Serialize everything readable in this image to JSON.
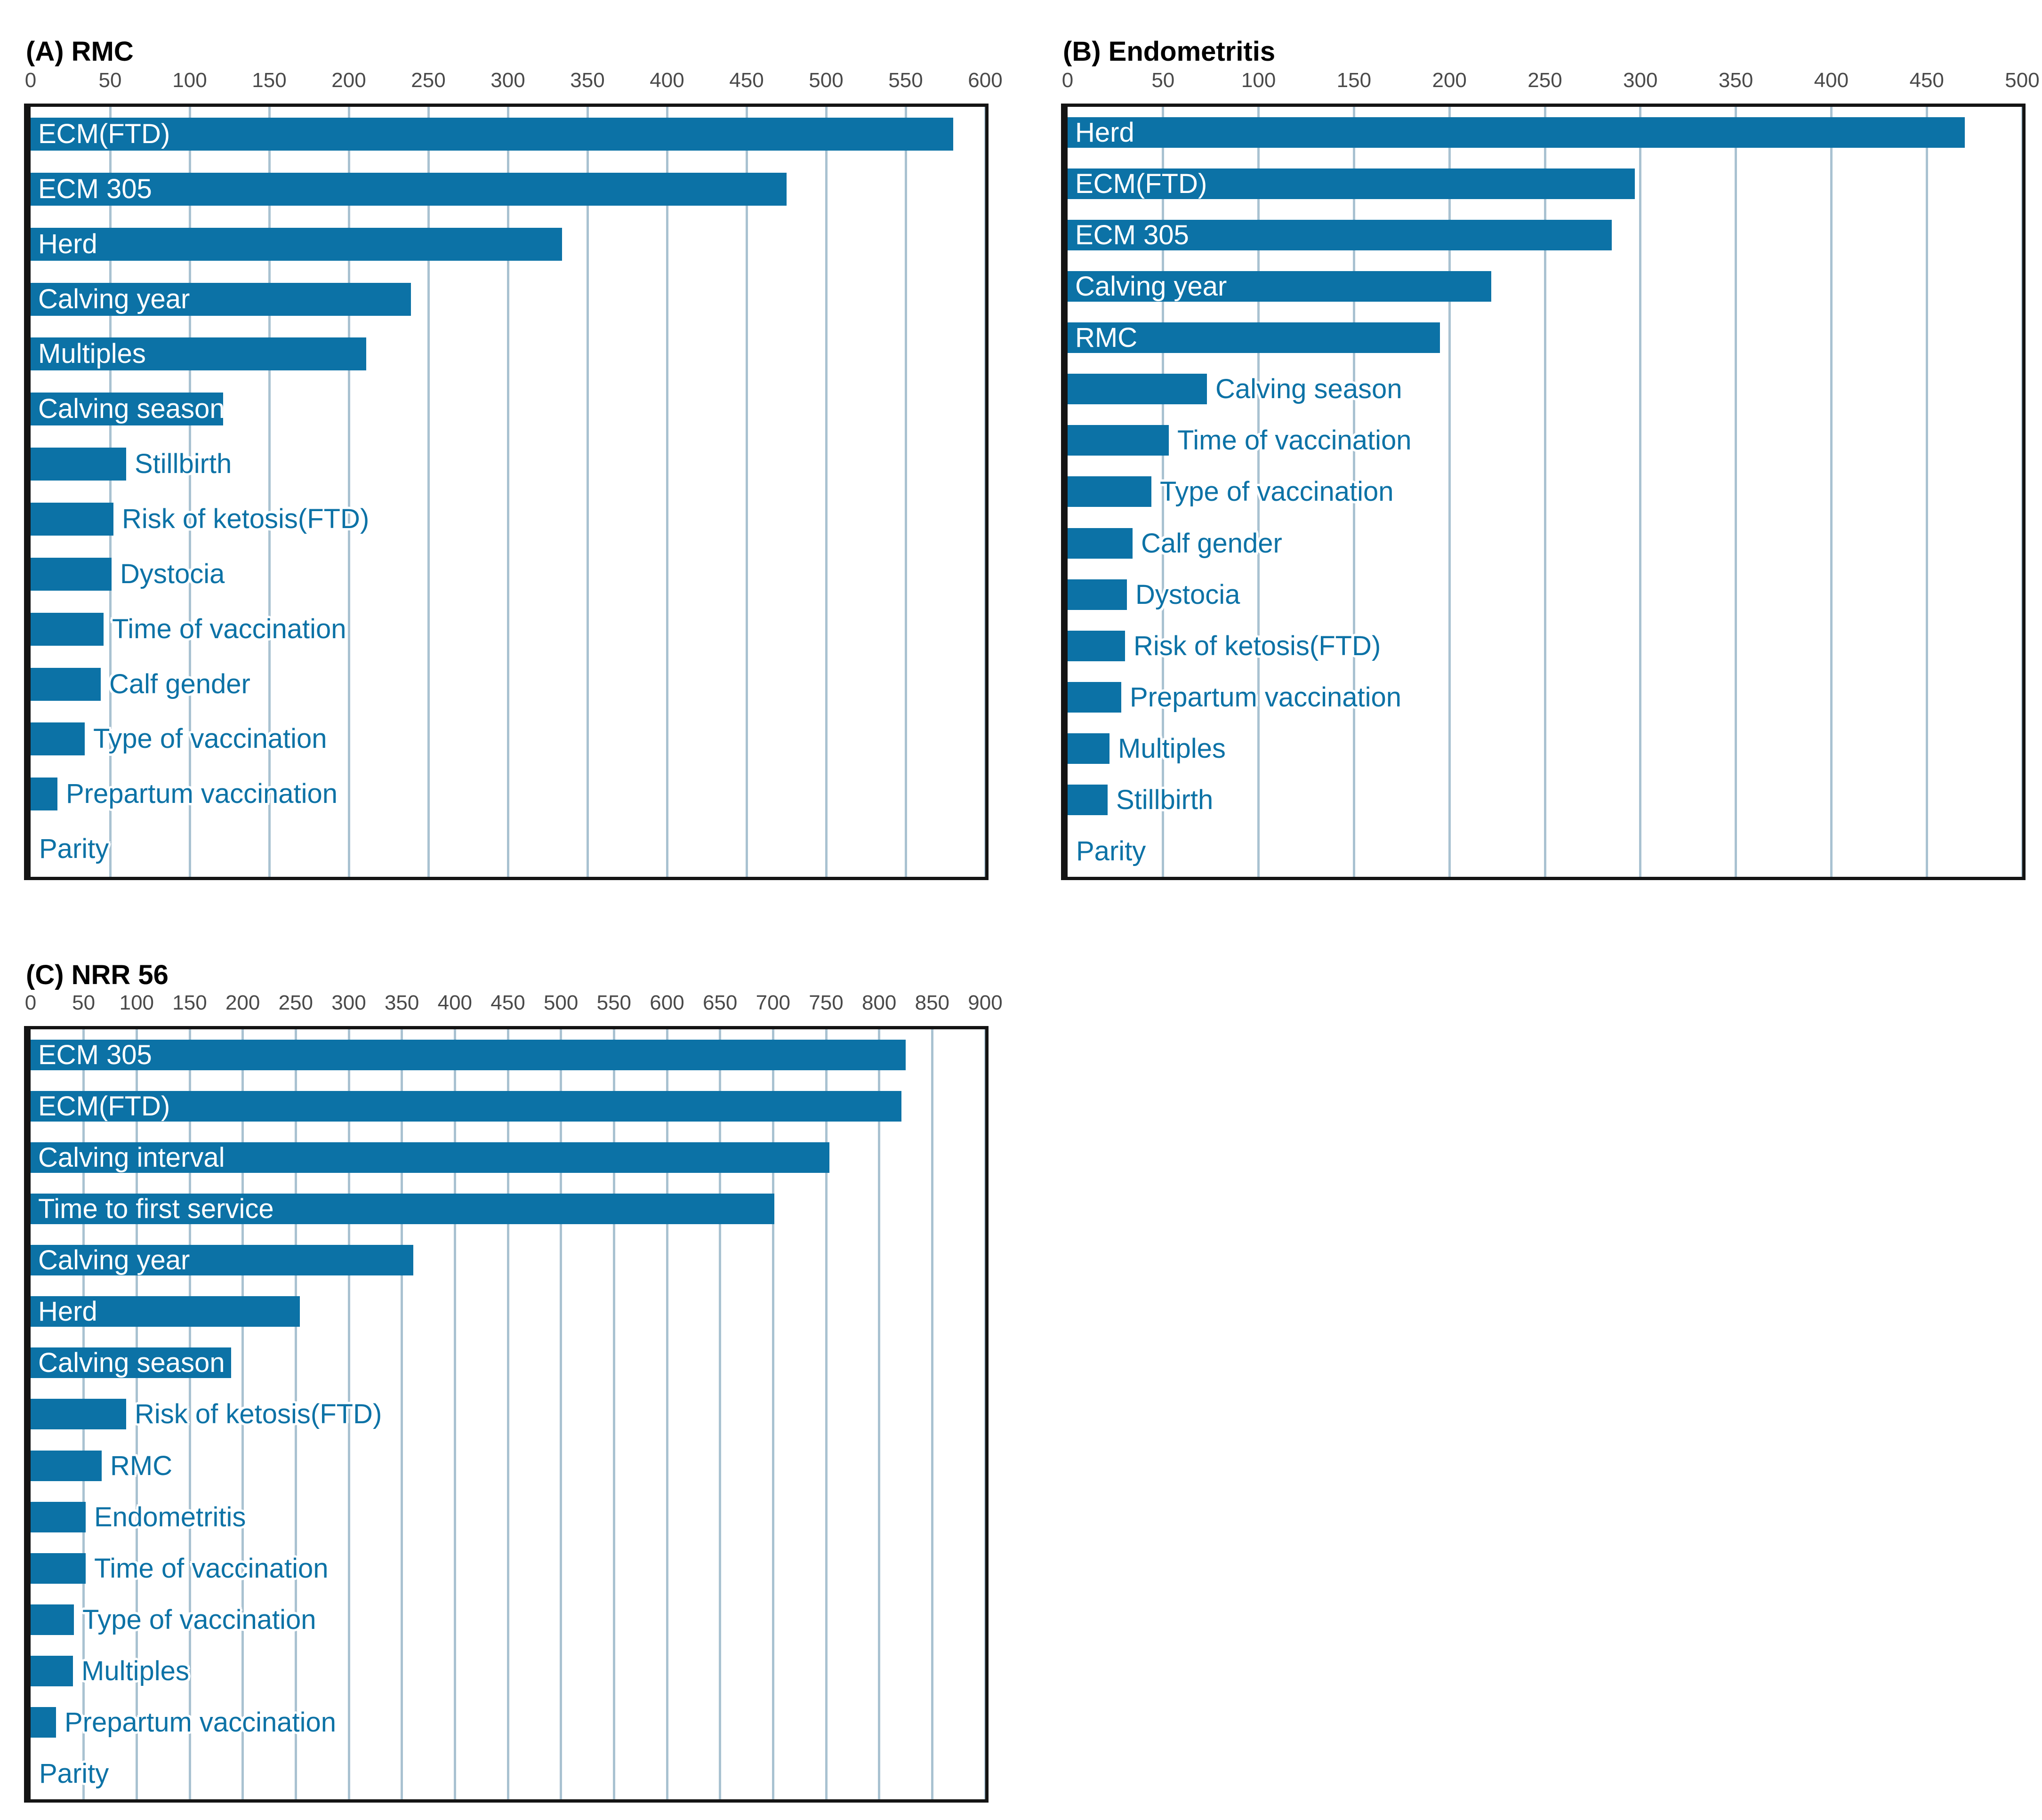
{
  "figure": {
    "background": "#ffffff",
    "bar_color": "#0c72a6",
    "outside_label_color": "#0c72a6",
    "inside_label_color": "#ffffff",
    "gridline_color": "#a9c2d1",
    "tick_color": "#4a4a4a",
    "frame_color": "#141414"
  },
  "chart_data": [
    {
      "panel": "A",
      "title": "(A) RMC",
      "type": "bar",
      "orientation": "horizontal",
      "xlim": [
        0,
        600
      ],
      "tick_step": 50,
      "grid": true,
      "legend": "none",
      "categories": [
        "ECM(FTD)",
        "ECM 305",
        "Herd",
        "Calving year",
        "Multiples",
        "Calving season",
        "Stillbirth",
        "Risk of ketosis(FTD)",
        "Dystocia",
        "Time of vaccination",
        "Calf gender",
        "Type of vaccination",
        "Prepartum vaccination",
        "Parity"
      ],
      "values": [
        580,
        475,
        334,
        239,
        211,
        121,
        60,
        52,
        51,
        46,
        44,
        34,
        17,
        0
      ]
    },
    {
      "panel": "B",
      "title": "(B) Endometritis",
      "type": "bar",
      "orientation": "horizontal",
      "xlim": [
        0,
        500
      ],
      "tick_step": 50,
      "grid": true,
      "legend": "none",
      "categories": [
        "Herd",
        "ECM(FTD)",
        "ECM 305",
        "Calving year",
        "RMC",
        "Calving season",
        "Time of vaccination",
        "Type of vaccination",
        "Calf gender",
        "Dystocia",
        "Risk of ketosis(FTD)",
        "Prepartum vaccination",
        "Multiples",
        "Stillbirth",
        "Parity"
      ],
      "values": [
        470,
        297,
        285,
        222,
        195,
        73,
        53,
        44,
        34,
        31,
        30,
        28,
        22,
        21,
        0
      ]
    },
    {
      "panel": "C",
      "title": "(C) NRR 56",
      "type": "bar",
      "orientation": "horizontal",
      "xlim": [
        0,
        900
      ],
      "tick_step": 50,
      "grid": true,
      "legend": "none",
      "categories": [
        "ECM 305",
        "ECM(FTD)",
        "Calving interval",
        "Time to first service",
        "Calving year",
        "Herd",
        "Calving season",
        "Risk of ketosis(FTD)",
        "RMC",
        "Endometritis",
        "Time of vaccination",
        "Type of vaccination",
        "Multiples",
        "Prepartum vaccination",
        "Parity"
      ],
      "values": [
        825,
        821,
        753,
        701,
        361,
        254,
        189,
        90,
        67,
        52,
        52,
        41,
        40,
        24,
        0
      ]
    }
  ]
}
